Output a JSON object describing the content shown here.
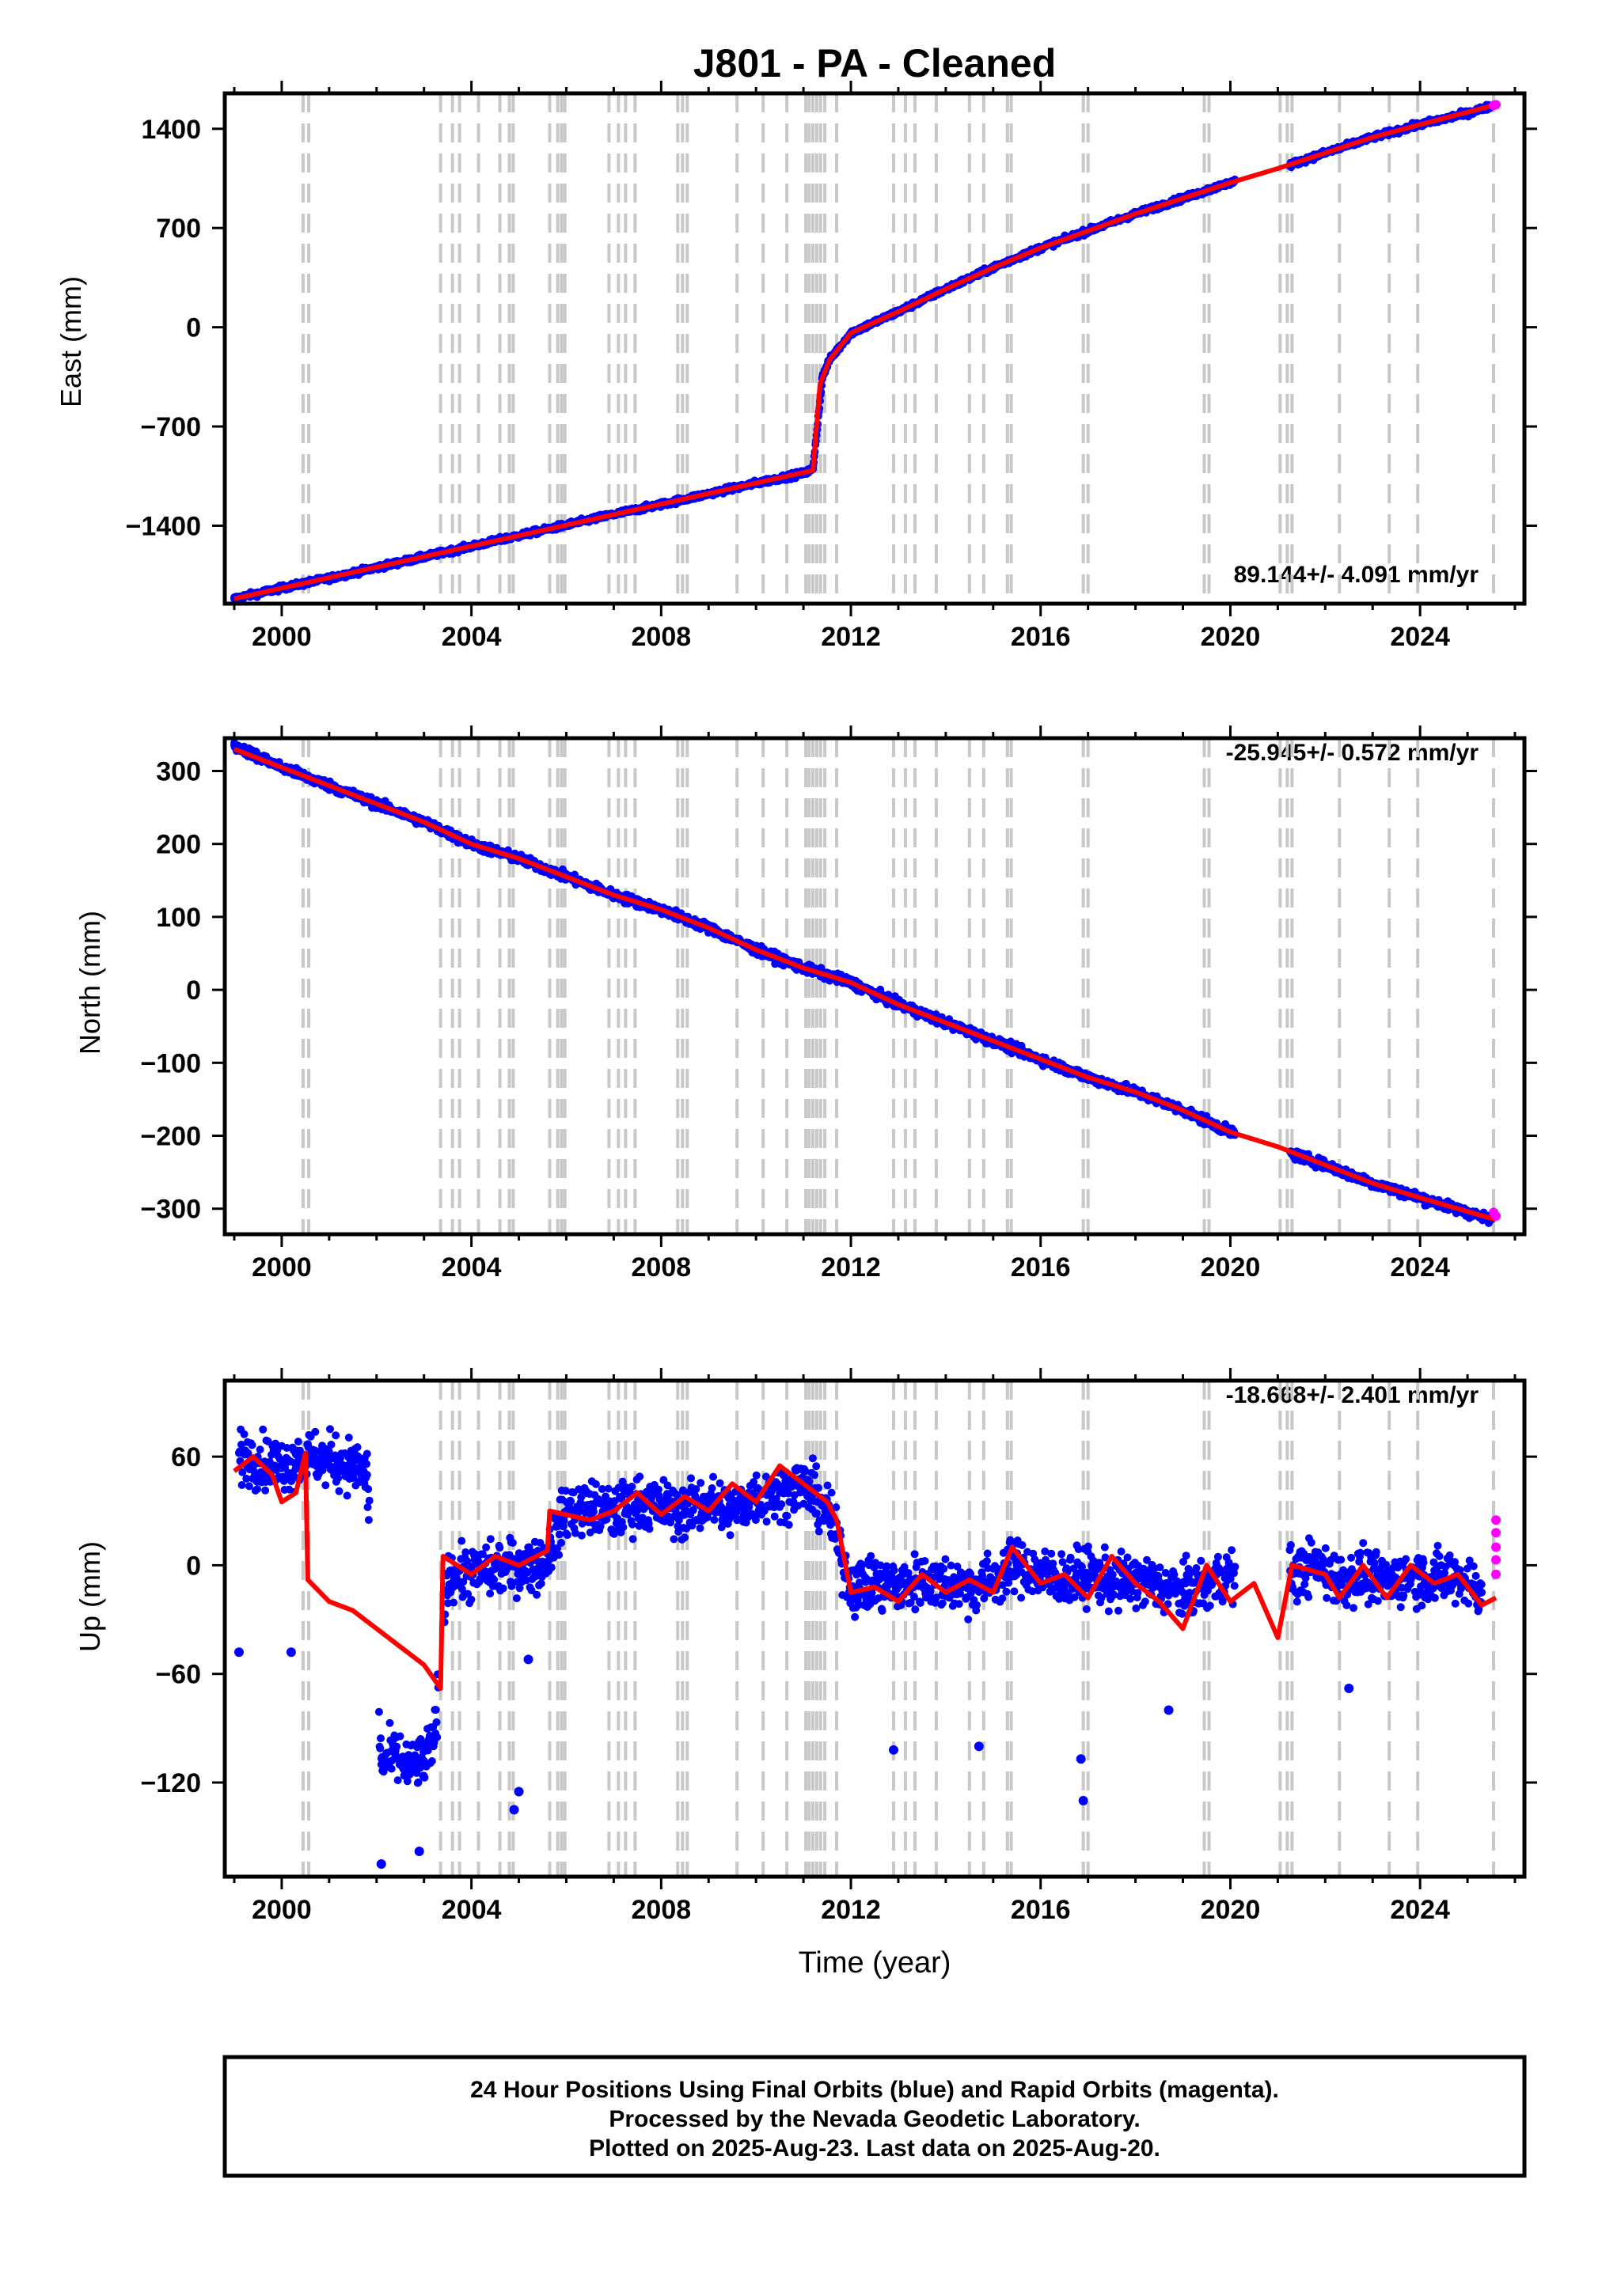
{
  "title": "J801  - PA - Cleaned",
  "footer": {
    "lines": [
      "24 Hour Positions Using Final Orbits (blue) and Rapid Orbits (magenta).",
      "Processed by the Nevada Geodetic Laboratory.",
      "Plotted on 2025-Aug-23. Last data on 2025-Aug-20."
    ]
  },
  "colors": {
    "final": "#0000ff",
    "rapid": "#ff00ff",
    "model": "#ff0000",
    "steps": "#c8c8c8",
    "frame": "#000000"
  },
  "step_epochs": [
    2000.45,
    2000.57,
    2003.35,
    2003.6,
    2003.75,
    2004.15,
    2004.6,
    2004.8,
    2004.88,
    2005.65,
    2005.82,
    2005.9,
    2005.97,
    2006.9,
    2007.1,
    2007.25,
    2007.45,
    2008.35,
    2008.45,
    2008.55,
    2009.6,
    2010.15,
    2010.65,
    2011.05,
    2011.12,
    2011.2,
    2011.28,
    2011.36,
    2011.45,
    2011.7,
    2012.9,
    2013.15,
    2013.35,
    2013.8,
    2014.5,
    2014.8,
    2015.3,
    2015.38,
    2016.9,
    2017.0,
    2019.45,
    2019.55,
    2021.05,
    2021.2,
    2021.3,
    2022.3,
    2023.35,
    2023.95,
    2025.55
  ],
  "chart_data": [
    {
      "type": "scatter",
      "name": "east",
      "ylabel": "East (mm)",
      "rate_label": "89.144+/- 4.091 mm/yr",
      "x_ticks": [
        "2000",
        "2004",
        "2008",
        "2012",
        "2016",
        "2020",
        "2024"
      ],
      "y_ticks": [
        "1400",
        "700",
        "0",
        "−700",
        "−1400"
      ],
      "xlim": [
        1998.8,
        2026.2
      ],
      "ylim": [
        -1950,
        1650
      ],
      "final_points": [
        [
          1999.0,
          -1915
        ],
        [
          2000.0,
          -1840
        ],
        [
          2001.0,
          -1770
        ],
        [
          2002.0,
          -1695
        ],
        [
          2003.0,
          -1620
        ],
        [
          2004.0,
          -1545
        ],
        [
          2005.0,
          -1470
        ],
        [
          2006.0,
          -1395
        ],
        [
          2007.0,
          -1320
        ],
        [
          2008.0,
          -1250
        ],
        [
          2009.0,
          -1175
        ],
        [
          2010.0,
          -1100
        ],
        [
          2011.0,
          -1030
        ],
        [
          2011.2,
          -1000
        ],
        [
          2011.4,
          -350
        ],
        [
          2011.55,
          -230
        ],
        [
          2012.0,
          -40
        ],
        [
          2013.0,
          110
        ],
        [
          2014.0,
          270
        ],
        [
          2015.0,
          420
        ],
        [
          2016.0,
          560
        ],
        [
          2017.0,
          680
        ],
        [
          2018.0,
          800
        ],
        [
          2019.0,
          910
        ],
        [
          2020.0,
          1020
        ],
        [
          2021.3,
          1150
        ],
        [
          2022.0,
          1230
        ],
        [
          2023.0,
          1340
        ],
        [
          2024.0,
          1430
        ],
        [
          2025.0,
          1510
        ],
        [
          2025.5,
          1560
        ]
      ],
      "rapid_points": [
        [
          2025.55,
          1565
        ],
        [
          2025.6,
          1570
        ]
      ],
      "model_line": [
        [
          1999.0,
          -1915
        ],
        [
          2011.2,
          -1010
        ],
        [
          2011.35,
          -400
        ],
        [
          2011.55,
          -230
        ],
        [
          2012.0,
          -40
        ],
        [
          2013.0,
          110
        ],
        [
          2014.0,
          270
        ],
        [
          2015.0,
          420
        ],
        [
          2016.0,
          560
        ],
        [
          2017.0,
          680
        ],
        [
          2018.0,
          800
        ],
        [
          2019.0,
          910
        ],
        [
          2020.0,
          1020
        ],
        [
          2021.0,
          1120
        ],
        [
          2022.0,
          1230
        ],
        [
          2023.0,
          1340
        ],
        [
          2024.0,
          1430
        ],
        [
          2025.6,
          1570
        ]
      ]
    },
    {
      "type": "scatter",
      "name": "north",
      "ylabel": "North (mm)",
      "rate_label": "-25.945+/- 0.572 mm/yr",
      "x_ticks": [
        "2000",
        "2004",
        "2008",
        "2012",
        "2016",
        "2020",
        "2024"
      ],
      "y_ticks": [
        "300",
        "200",
        "100",
        "0",
        "−100",
        "−200",
        "−300"
      ],
      "xlim": [
        1998.8,
        2026.2
      ],
      "ylim": [
        -335,
        345
      ],
      "final_points": [
        [
          1999.0,
          335
        ],
        [
          2000.0,
          305
        ],
        [
          2001.0,
          280
        ],
        [
          2002.0,
          255
        ],
        [
          2003.0,
          230
        ],
        [
          2004.0,
          200
        ],
        [
          2005.0,
          180
        ],
        [
          2006.0,
          155
        ],
        [
          2007.0,
          130
        ],
        [
          2008.0,
          110
        ],
        [
          2009.0,
          85
        ],
        [
          2010.0,
          55
        ],
        [
          2011.0,
          30
        ],
        [
          2012.0,
          10
        ],
        [
          2013.0,
          -20
        ],
        [
          2014.0,
          -45
        ],
        [
          2015.0,
          -70
        ],
        [
          2016.0,
          -95
        ],
        [
          2017.0,
          -120
        ],
        [
          2018.0,
          -140
        ],
        [
          2019.0,
          -165
        ],
        [
          2020.0,
          -195
        ],
        [
          2021.3,
          -225
        ],
        [
          2022.0,
          -240
        ],
        [
          2023.0,
          -265
        ],
        [
          2024.0,
          -285
        ],
        [
          2025.0,
          -305
        ],
        [
          2025.5,
          -315
        ]
      ],
      "rapid_points": [
        [
          2025.55,
          -305
        ],
        [
          2025.6,
          -310
        ]
      ],
      "model_line": [
        [
          1999.0,
          330
        ],
        [
          2000.0,
          305
        ],
        [
          2001.0,
          280
        ],
        [
          2002.0,
          255
        ],
        [
          2003.0,
          230
        ],
        [
          2004.0,
          200
        ],
        [
          2005.0,
          180
        ],
        [
          2006.0,
          155
        ],
        [
          2007.0,
          130
        ],
        [
          2008.0,
          110
        ],
        [
          2009.0,
          85
        ],
        [
          2010.0,
          55
        ],
        [
          2011.0,
          30
        ],
        [
          2012.0,
          10
        ],
        [
          2013.0,
          -20
        ],
        [
          2014.0,
          -45
        ],
        [
          2015.0,
          -70
        ],
        [
          2016.0,
          -95
        ],
        [
          2017.0,
          -120
        ],
        [
          2018.0,
          -140
        ],
        [
          2019.0,
          -165
        ],
        [
          2020.0,
          -195
        ],
        [
          2021.0,
          -215
        ],
        [
          2022.0,
          -240
        ],
        [
          2023.0,
          -265
        ],
        [
          2024.0,
          -285
        ],
        [
          2025.6,
          -315
        ]
      ]
    },
    {
      "type": "scatter",
      "name": "up",
      "ylabel": "Up (mm)",
      "xlabel": "Time (year)",
      "rate_label": "-18.668+/- 2.401 mm/yr",
      "x_ticks": [
        "2000",
        "2004",
        "2008",
        "2012",
        "2016",
        "2020",
        "2024"
      ],
      "y_ticks": [
        "60",
        "0",
        "−60",
        "−120"
      ],
      "xlim": [
        1998.8,
        2026.2
      ],
      "ylim": [
        -172,
        102
      ],
      "final_points": [
        [
          1999.1,
          62
        ],
        [
          1999.5,
          58
        ],
        [
          2000.0,
          55
        ],
        [
          2000.5,
          60
        ],
        [
          2001.0,
          58
        ],
        [
          2001.5,
          55
        ],
        [
          2001.8,
          50
        ],
        [
          2002.1,
          -110
        ],
        [
          2002.4,
          -105
        ],
        [
          2002.7,
          -112
        ],
        [
          2003.0,
          -108
        ],
        [
          2003.2,
          -100
        ],
        [
          2003.5,
          -5
        ],
        [
          2004.0,
          -5
        ],
        [
          2004.5,
          -2
        ],
        [
          2005.0,
          0
        ],
        [
          2005.5,
          0
        ],
        [
          2006.0,
          30
        ],
        [
          2006.5,
          32
        ],
        [
          2007.0,
          28
        ],
        [
          2007.5,
          35
        ],
        [
          2008.0,
          32
        ],
        [
          2008.5,
          30
        ],
        [
          2009.0,
          35
        ],
        [
          2009.5,
          30
        ],
        [
          2010.0,
          38
        ],
        [
          2010.5,
          40
        ],
        [
          2011.0,
          45
        ],
        [
          2011.5,
          30
        ],
        [
          2012.0,
          -12
        ],
        [
          2012.5,
          -10
        ],
        [
          2013.0,
          -12
        ],
        [
          2013.5,
          -8
        ],
        [
          2014.0,
          -10
        ],
        [
          2014.5,
          -12
        ],
        [
          2015.0,
          -8
        ],
        [
          2015.5,
          0
        ],
        [
          2016.0,
          -5
        ],
        [
          2016.5,
          -8
        ],
        [
          2017.0,
          -5
        ],
        [
          2017.5,
          -10
        ],
        [
          2018.0,
          -8
        ],
        [
          2018.5,
          -12
        ],
        [
          2019.0,
          -15
        ],
        [
          2019.5,
          -10
        ],
        [
          2020.0,
          -5
        ],
        [
          2021.3,
          -5
        ],
        [
          2021.8,
          0
        ],
        [
          2022.3,
          -8
        ],
        [
          2022.8,
          -5
        ],
        [
          2023.3,
          -10
        ],
        [
          2023.8,
          -5
        ],
        [
          2024.3,
          -8
        ],
        [
          2024.8,
          -5
        ],
        [
          2025.3,
          -15
        ]
      ],
      "outliers": [
        [
          1999.1,
          -48
        ],
        [
          2000.2,
          -48
        ],
        [
          2002.1,
          -165
        ],
        [
          2002.9,
          -158
        ],
        [
          2004.9,
          -135
        ],
        [
          2005.0,
          -125
        ],
        [
          2005.2,
          -52
        ],
        [
          2012.9,
          -102
        ],
        [
          2014.7,
          -100
        ],
        [
          2016.9,
          -130
        ],
        [
          2016.85,
          -107
        ],
        [
          2018.7,
          -80
        ],
        [
          2022.5,
          -68
        ]
      ],
      "rapid_points": [
        [
          2025.6,
          25
        ],
        [
          2025.6,
          18
        ],
        [
          2025.6,
          10
        ],
        [
          2025.6,
          3
        ],
        [
          2025.6,
          -5
        ]
      ],
      "model_line": [
        [
          1999.0,
          52
        ],
        [
          1999.4,
          60
        ],
        [
          1999.8,
          50
        ],
        [
          2000.0,
          35
        ],
        [
          2000.3,
          40
        ],
        [
          2000.5,
          62
        ],
        [
          2000.55,
          -8
        ],
        [
          2001.0,
          -20
        ],
        [
          2001.5,
          -25
        ],
        [
          2002.0,
          -35
        ],
        [
          2002.5,
          -45
        ],
        [
          2003.0,
          -55
        ],
        [
          2003.35,
          -68
        ],
        [
          2003.4,
          5
        ],
        [
          2004.0,
          -5
        ],
        [
          2004.5,
          5
        ],
        [
          2005.0,
          0
        ],
        [
          2005.6,
          8
        ],
        [
          2005.65,
          30
        ],
        [
          2006.5,
          25
        ],
        [
          2007.0,
          30
        ],
        [
          2007.5,
          40
        ],
        [
          2008.0,
          28
        ],
        [
          2008.5,
          38
        ],
        [
          2009.0,
          30
        ],
        [
          2009.5,
          45
        ],
        [
          2010.0,
          35
        ],
        [
          2010.5,
          55
        ],
        [
          2011.0,
          45
        ],
        [
          2011.5,
          35
        ],
        [
          2011.7,
          25
        ],
        [
          2012.0,
          -15
        ],
        [
          2012.5,
          -12
        ],
        [
          2013.0,
          -20
        ],
        [
          2013.5,
          -5
        ],
        [
          2014.0,
          -15
        ],
        [
          2014.5,
          -8
        ],
        [
          2015.0,
          -15
        ],
        [
          2015.4,
          10
        ],
        [
          2016.0,
          -10
        ],
        [
          2016.5,
          -5
        ],
        [
          2017.0,
          -18
        ],
        [
          2017.5,
          5
        ],
        [
          2018.0,
          -10
        ],
        [
          2018.5,
          -20
        ],
        [
          2019.0,
          -35
        ],
        [
          2019.5,
          0
        ],
        [
          2020.0,
          -20
        ],
        [
          2020.5,
          -10
        ],
        [
          2021.0,
          -40
        ],
        [
          2021.3,
          0
        ],
        [
          2022.0,
          -5
        ],
        [
          2022.3,
          -18
        ],
        [
          2022.8,
          0
        ],
        [
          2023.3,
          -18
        ],
        [
          2023.8,
          0
        ],
        [
          2024.3,
          -10
        ],
        [
          2024.8,
          -5
        ],
        [
          2025.3,
          -22
        ],
        [
          2025.6,
          -18
        ]
      ]
    }
  ]
}
